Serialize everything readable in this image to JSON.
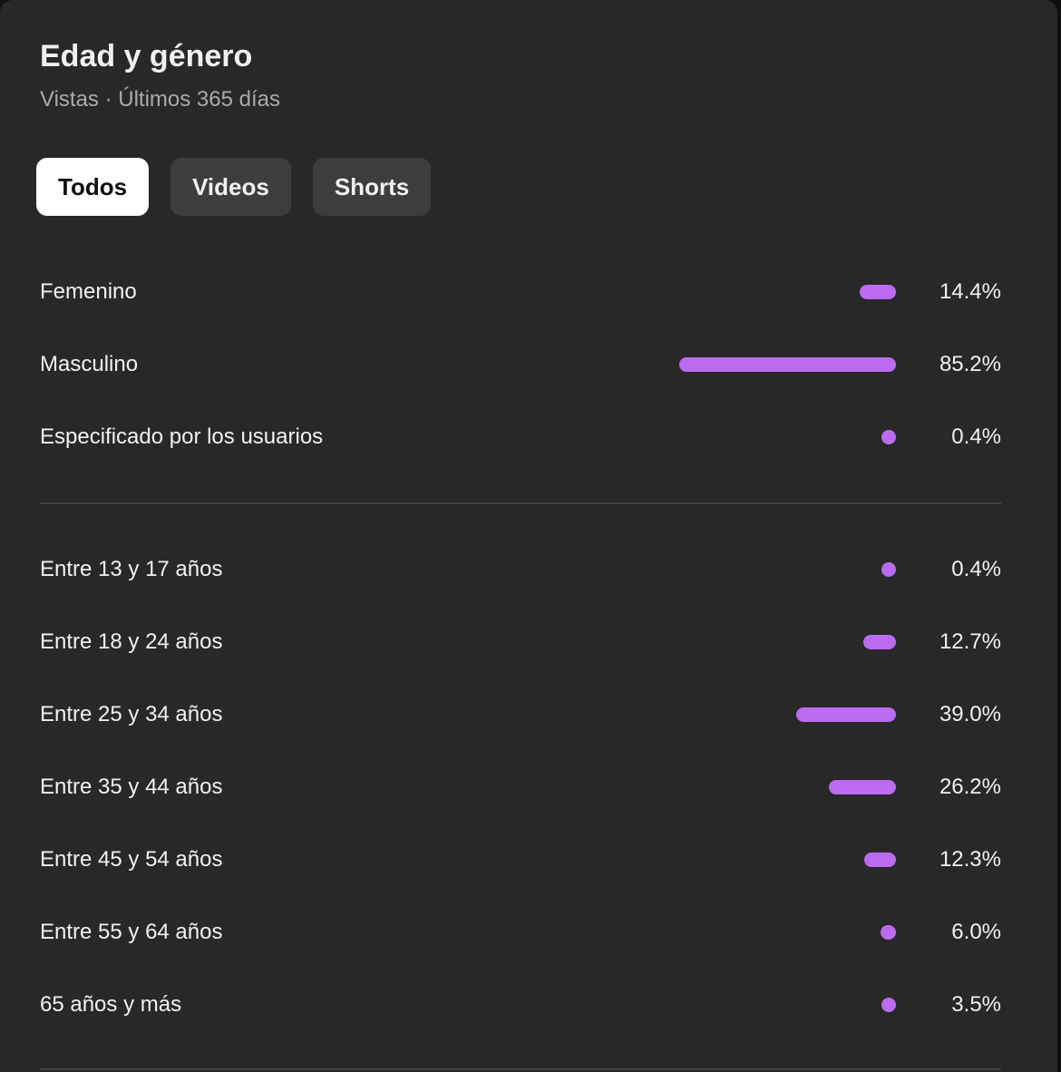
{
  "header": {
    "title": "Edad y género",
    "subtitle": "Vistas · Últimos 365 días"
  },
  "tabs": [
    {
      "label": "Todos",
      "active": true
    },
    {
      "label": "Videos",
      "active": false
    },
    {
      "label": "Shorts",
      "active": false
    }
  ],
  "colors": {
    "bar": "#bb6bf0",
    "card_background": "#282828",
    "active_tab": "#ffffff"
  },
  "chart_data": [
    {
      "type": "bar",
      "orientation": "horizontal",
      "categories": [
        "Femenino",
        "Masculino",
        "Especificado por los usuarios"
      ],
      "values": [
        14.4,
        85.2,
        0.4
      ],
      "value_labels": [
        "14.4%",
        "85.2%",
        "0.4%"
      ],
      "title": "",
      "xlabel": "",
      "ylabel": "",
      "xlim": [
        0,
        100
      ],
      "grid": false
    },
    {
      "type": "bar",
      "orientation": "horizontal",
      "categories": [
        "Entre 13 y 17 años",
        "Entre 18 y 24 años",
        "Entre 25 y 34 años",
        "Entre 35 y 44 años",
        "Entre 45 y 54 años",
        "Entre 55 y 64 años",
        "65 años y más"
      ],
      "values": [
        0.4,
        12.7,
        39.0,
        26.2,
        12.3,
        6.0,
        3.5
      ],
      "value_labels": [
        "0.4%",
        "12.7%",
        "39.0%",
        "26.2%",
        "12.3%",
        "6.0%",
        "3.5%"
      ],
      "title": "",
      "xlabel": "",
      "ylabel": "",
      "xlim": [
        0,
        100
      ],
      "grid": false
    }
  ]
}
